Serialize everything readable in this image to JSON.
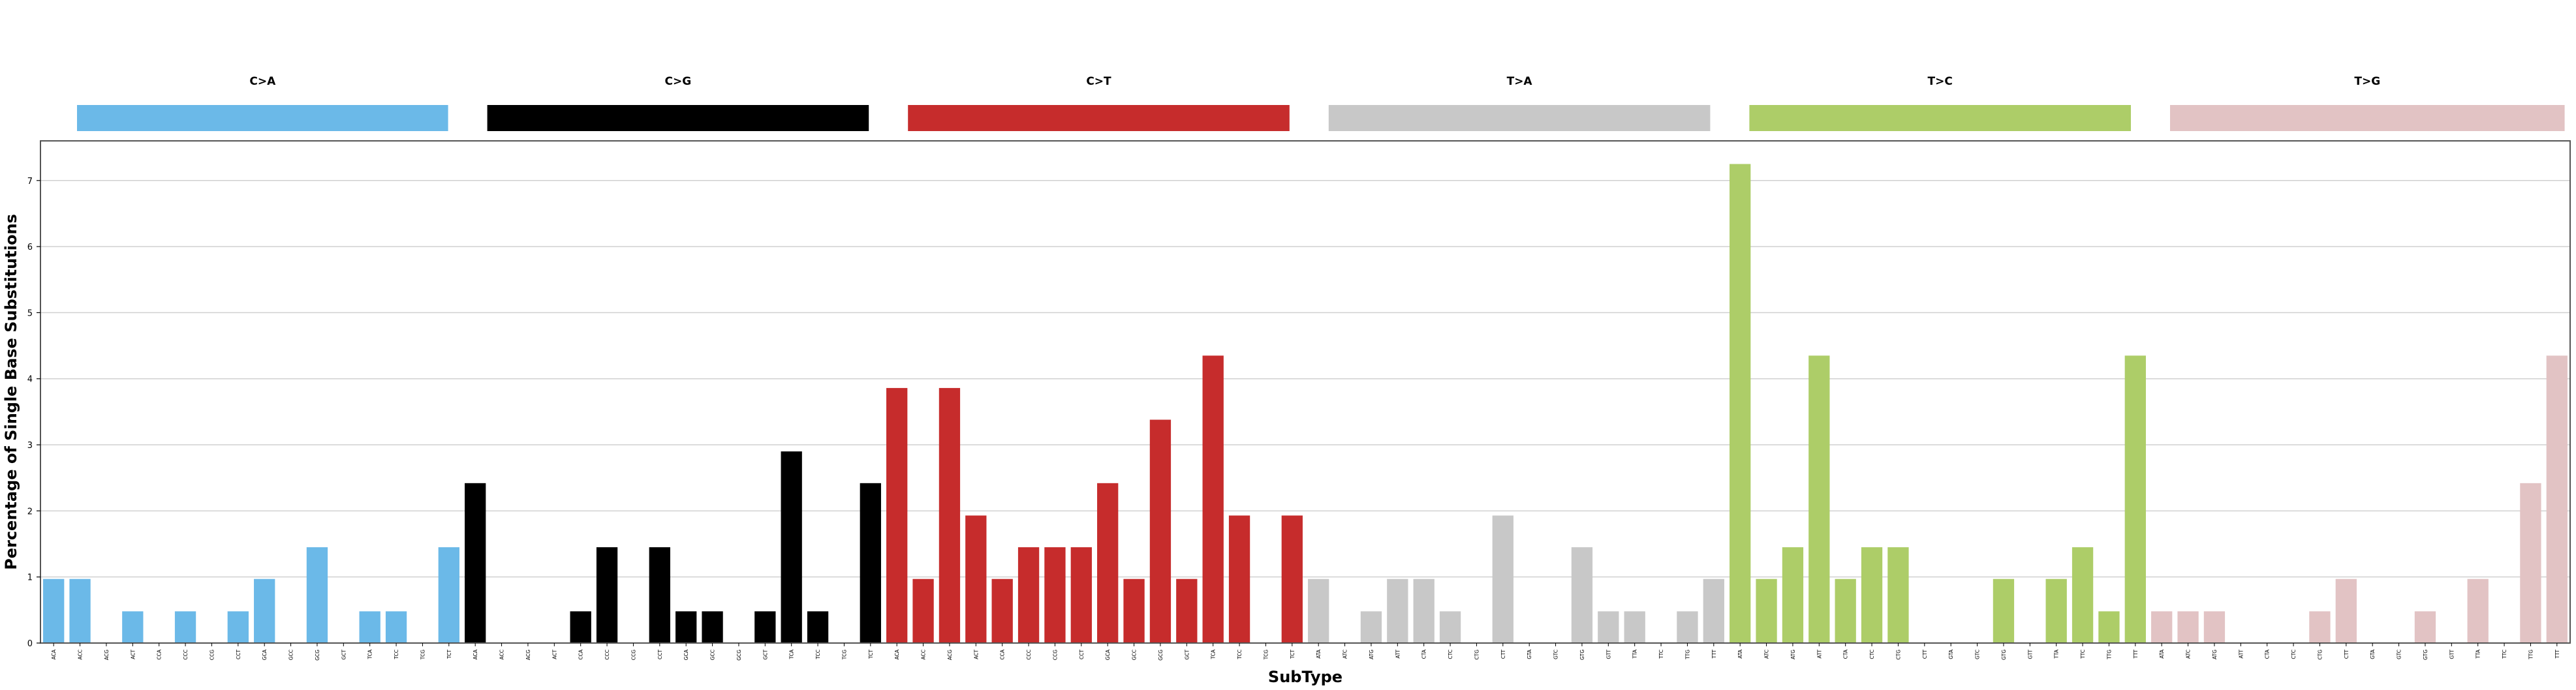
{
  "chart_data": {
    "type": "bar",
    "xlabel": "SubType",
    "ylabel": "Percentage of Single Base Substitutions",
    "ylim": [
      0,
      7.6
    ],
    "yticks": [
      0,
      1,
      2,
      3,
      4,
      5,
      6,
      7
    ],
    "grid": true,
    "groups": [
      {
        "name": "C>A",
        "color": "#6BB9E8"
      },
      {
        "name": "C>G",
        "color": "#000000"
      },
      {
        "name": "C>T",
        "color": "#C62C2C"
      },
      {
        "name": "T>A",
        "color": "#C8C8C8"
      },
      {
        "name": "T>C",
        "color": "#ADCD68"
      },
      {
        "name": "T>G",
        "color": "#E2C3C4"
      }
    ],
    "categories": [
      "ACA",
      "ACC",
      "ACG",
      "ACT",
      "CCA",
      "CCC",
      "CCG",
      "CCT",
      "GCA",
      "GCC",
      "GCG",
      "GCT",
      "TCA",
      "TCC",
      "TCG",
      "TCT",
      "ACA",
      "ACC",
      "ACG",
      "ACT",
      "CCA",
      "CCC",
      "CCG",
      "CCT",
      "GCA",
      "GCC",
      "GCG",
      "GCT",
      "TCA",
      "TCC",
      "TCG",
      "TCT",
      "ACA",
      "ACC",
      "ACG",
      "ACT",
      "CCA",
      "CCC",
      "CCG",
      "CCT",
      "GCA",
      "GCC",
      "GCG",
      "GCT",
      "TCA",
      "TCC",
      "TCG",
      "TCT",
      "ATA",
      "ATC",
      "ATG",
      "ATT",
      "CTA",
      "CTC",
      "CTG",
      "CTT",
      "GTA",
      "GTC",
      "GTG",
      "GTT",
      "TTA",
      "TTC",
      "TTG",
      "TTT",
      "ATA",
      "ATC",
      "ATG",
      "ATT",
      "CTA",
      "CTC",
      "CTG",
      "CTT",
      "GTA",
      "GTC",
      "GTG",
      "GTT",
      "TTA",
      "TTC",
      "TTG",
      "TTT",
      "ATA",
      "ATC",
      "ATG",
      "ATT",
      "CTA",
      "CTC",
      "CTG",
      "CTT",
      "GTA",
      "GTC",
      "GTG",
      "GTT",
      "TTA",
      "TTC",
      "TTG",
      "TTT"
    ],
    "values": [
      0.97,
      0.97,
      0,
      0.48,
      0,
      0.48,
      0,
      0.48,
      0.97,
      0,
      1.45,
      0,
      0.48,
      0.48,
      0,
      1.45,
      2.42,
      0,
      0,
      0,
      0.48,
      1.45,
      0,
      1.45,
      0.48,
      0.48,
      0,
      0.48,
      2.9,
      0.48,
      0,
      2.42,
      3.86,
      0.97,
      3.86,
      1.93,
      0.97,
      1.45,
      1.45,
      1.45,
      2.42,
      0.97,
      3.38,
      0.97,
      4.35,
      1.93,
      0,
      1.93,
      0.97,
      0,
      0.48,
      0.97,
      0.97,
      0.48,
      0,
      1.93,
      0,
      0,
      1.45,
      0.48,
      0.48,
      0,
      0.48,
      0.97,
      7.25,
      0.97,
      1.45,
      4.35,
      0.97,
      1.45,
      1.45,
      0,
      0,
      0,
      0.97,
      0,
      0.97,
      1.45,
      0.48,
      4.35,
      0.48,
      0.48,
      0.48,
      0,
      0,
      0,
      0.48,
      0.97,
      0,
      0,
      0.48,
      0,
      0.97,
      0,
      2.42,
      4.35
    ]
  }
}
